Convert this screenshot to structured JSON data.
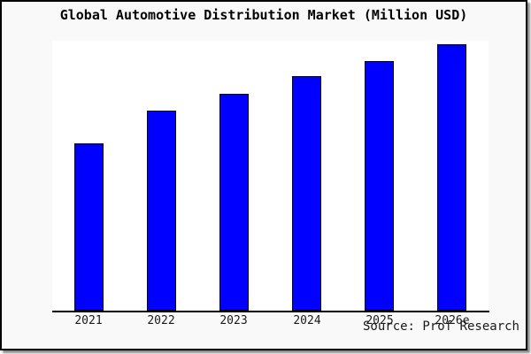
{
  "window": {
    "background": "#f9f9f9",
    "border_color": "#000000",
    "shadow_color": "#999999"
  },
  "chart_data": {
    "type": "bar",
    "title": "Global Automotive Distribution Market (Million USD)",
    "categories": [
      "2021",
      "2022",
      "2023",
      "2024",
      "2025",
      "2026e"
    ],
    "values": [
      62.8,
      75.1,
      81.4,
      88.0,
      93.7,
      100.0
    ],
    "units": "relative bar height index (no numeric y-axis shown; 2026e = 100)",
    "xlabel": "",
    "ylabel": "",
    "ylim": [
      0,
      100
    ],
    "grid": false,
    "legend": false,
    "bar_color": "#0000ff",
    "bar_edge_color": "#000000",
    "plot_background": "#ffffff",
    "axis_color": "#000000",
    "source_note": "Source: Prof Research"
  }
}
